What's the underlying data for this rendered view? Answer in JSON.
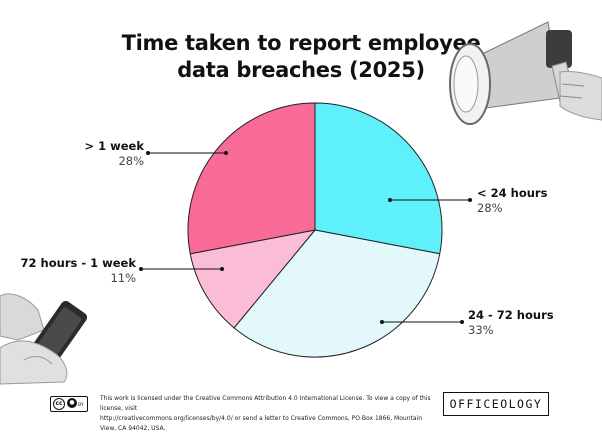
{
  "title": [
    "Time taken to report employee",
    "data breaches (2025)"
  ],
  "chart_data": {
    "type": "pie",
    "title": "Time taken to report employee data breaches (2025)",
    "start_angle_deg": 0,
    "direction": "clockwise",
    "slices": [
      {
        "label": "< 24 hours",
        "value": 28,
        "display": "28%",
        "color": "#5ef0fb",
        "side": "right"
      },
      {
        "label": "24 - 72 hours",
        "value": 33,
        "display": "33%",
        "color": "#e3f8fb",
        "side": "right"
      },
      {
        "label": "72 hours - 1 week",
        "value": 11,
        "display": "11%",
        "color": "#fbbcd5",
        "side": "left"
      },
      {
        "label": "> 1 week",
        "value": 28,
        "display": "28%",
        "color": "#f86b97",
        "side": "left"
      }
    ]
  },
  "footer": {
    "license_line1": "This work is licensed under the Creative Commons Attribution 4.0 International License. To view a copy of this license, visit",
    "license_line2": "http://creativecommons.org/licenses/by/4.0/ or send a letter to Creative Commons, PO Box 1866, Mountain View, CA 94042, USA.",
    "badge_cc": "cc",
    "badge_by": "BY",
    "brand": "OFFICEOLOGY"
  },
  "decorations": {
    "megaphone": "megaphone-icon",
    "phone_hand": "phone-hand-icon"
  }
}
